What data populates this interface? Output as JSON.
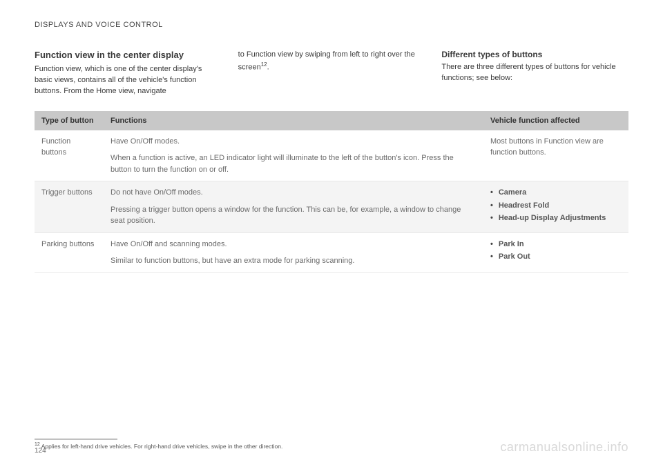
{
  "header": "DISPLAYS AND VOICE CONTROL",
  "col1": {
    "title": "Function view in the center display",
    "body": "Function view, which is one of the center display's basic views, contains all of the vehicle's function buttons. From the Home view, navigate"
  },
  "col2": {
    "body": "to Function view by swiping from left to right over the screen",
    "sup": "12",
    "tail": "."
  },
  "col3": {
    "title": "Different types of buttons",
    "body": "There are three different types of buttons for vehicle functions; see below:"
  },
  "table": {
    "headers": {
      "type": "Type of button",
      "functions": "Functions",
      "affected": "Vehicle function affected"
    },
    "rows": [
      {
        "type": "Function buttons",
        "func_main": "Have On/Off modes.",
        "func_sub": "When a function is active, an LED indicator light will illuminate to the left of the button's icon. Press the button to turn the function on or off.",
        "affected_text": "Most buttons in Function view are function buttons.",
        "affected_items": []
      },
      {
        "type": "Trigger buttons",
        "func_main": "Do not have On/Off modes.",
        "func_sub": "Pressing a trigger button opens a window for the function. This can be, for example, a window to change seat position.",
        "affected_text": "",
        "affected_items": [
          "Camera",
          "Headrest Fold",
          "Head-up Display Adjustments"
        ]
      },
      {
        "type": "Parking buttons",
        "func_main": "Have On/Off and scanning modes.",
        "func_sub": "Similar to function buttons, but have an extra mode for parking scanning.",
        "affected_text": "",
        "affected_items": [
          "Park In",
          "Park Out"
        ]
      }
    ]
  },
  "footnote": {
    "num": "12",
    "text": "Applies for left-hand drive vehicles. For right-hand drive vehicles, swipe in the other direction."
  },
  "page_number": "124",
  "watermark": "carmanualsonline.info"
}
